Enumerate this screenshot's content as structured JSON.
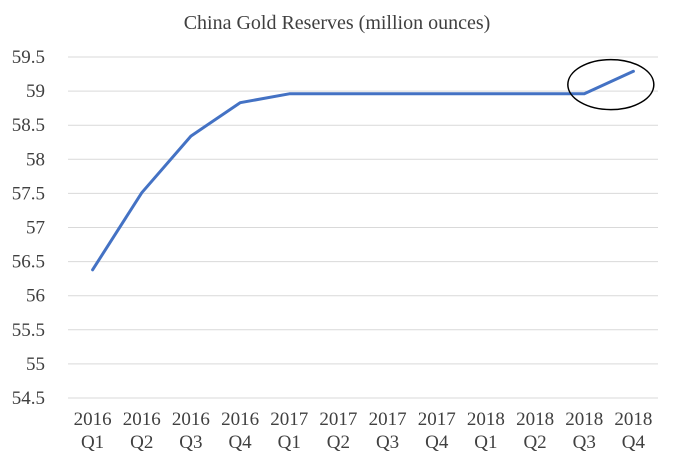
{
  "colors": {
    "series": "#4472c4",
    "grid": "#d9d9d9",
    "text": "#404040",
    "highlight": "#000000"
  },
  "chart_data": {
    "type": "line",
    "title": "China Gold Reserves (million ounces)",
    "xlabel": "",
    "ylabel": "",
    "categories": [
      [
        "2016",
        "Q1"
      ],
      [
        "2016",
        "Q2"
      ],
      [
        "2016",
        "Q3"
      ],
      [
        "2016",
        "Q4"
      ],
      [
        "2017",
        "Q1"
      ],
      [
        "2017",
        "Q2"
      ],
      [
        "2017",
        "Q3"
      ],
      [
        "2017",
        "Q4"
      ],
      [
        "2018",
        "Q1"
      ],
      [
        "2018",
        "Q2"
      ],
      [
        "2018",
        "Q3"
      ],
      [
        "2018",
        "Q4"
      ]
    ],
    "series": [
      {
        "values": [
          56.38,
          57.51,
          58.34,
          58.83,
          58.96,
          58.96,
          58.96,
          58.96,
          58.96,
          58.96,
          58.96,
          59.29
        ]
      }
    ],
    "ylim": [
      54.5,
      59.5
    ],
    "yticks": [
      "54.5",
      "55",
      "55.5",
      "56",
      "56.5",
      "57",
      "57.5",
      "58",
      "58.5",
      "59",
      "59.5"
    ],
    "grid": true,
    "legend": "none",
    "annotation": {
      "shape": "ellipse",
      "around": [
        "2018 Q3",
        "2018 Q4"
      ]
    }
  }
}
